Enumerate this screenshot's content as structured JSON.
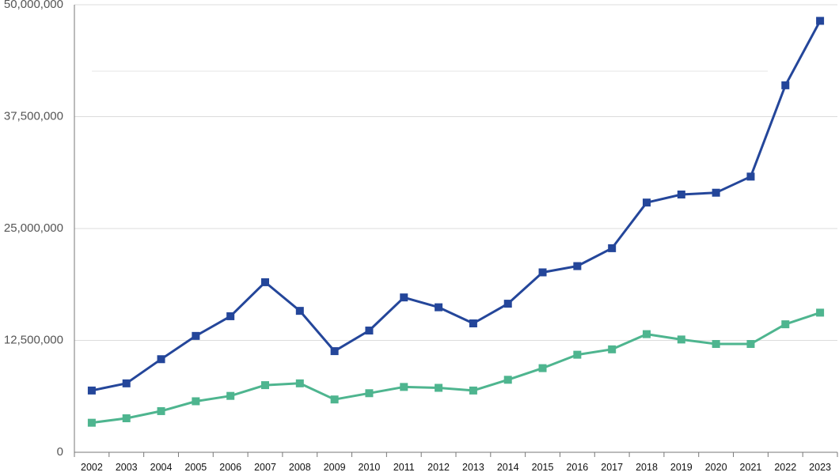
{
  "chart_data": {
    "type": "line",
    "title": "",
    "xlabel": "",
    "ylabel": "",
    "categories": [
      "2002",
      "2003",
      "2004",
      "2005",
      "2006",
      "2007",
      "2008",
      "2009",
      "2010",
      "2011",
      "2012",
      "2013",
      "2014",
      "2015",
      "2016",
      "2017",
      "2018",
      "2019",
      "2020",
      "2021",
      "2022",
      "2023"
    ],
    "ylim": [
      0,
      50000000
    ],
    "yticks": [
      0,
      12500000,
      25000000,
      37500000,
      50000000
    ],
    "ytick_labels": [
      "0",
      "12,500,000",
      "25,000,000",
      "37,500,000",
      "50,000,000"
    ],
    "grid": true,
    "legend": "none",
    "series": [
      {
        "color": "#24469a",
        "values": [
          6900000,
          7700000,
          10400000,
          13000000,
          15200000,
          19000000,
          15800000,
          11300000,
          13600000,
          17300000,
          16200000,
          14400000,
          16600000,
          20100000,
          20800000,
          22800000,
          27900000,
          28800000,
          29000000,
          30800000,
          41000000,
          48200000
        ]
      },
      {
        "color": "#4eb58f",
        "values": [
          3300000,
          3800000,
          4600000,
          5700000,
          6300000,
          7500000,
          7700000,
          5900000,
          6600000,
          7300000,
          7200000,
          6900000,
          8100000,
          9400000,
          10900000,
          11500000,
          13200000,
          12600000,
          12100000,
          12100000,
          14300000,
          15600000
        ]
      }
    ]
  }
}
